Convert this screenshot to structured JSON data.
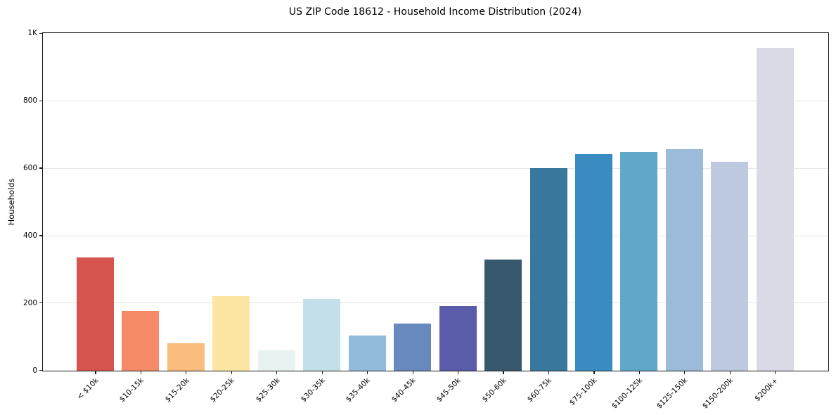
{
  "chart_data": {
    "type": "bar",
    "title": "US ZIP Code 18612 - Household Income Distribution (2024)",
    "xlabel": "",
    "ylabel": "Households",
    "categories": [
      "< $10k",
      "$10-15k",
      "$15-20k",
      "$20-25k",
      "$25-30k",
      "$30-35k",
      "$35-40k",
      "$40-45k",
      "$45-50k",
      "$50-60k",
      "$60-75k",
      "$75-100k",
      "$100-125k",
      "$125-150k",
      "$150-200k",
      "$200k+"
    ],
    "values": [
      337,
      177,
      82,
      222,
      60,
      212,
      105,
      139,
      191,
      330,
      600,
      643,
      650,
      658,
      619,
      958
    ],
    "bar_colors": [
      "#d5544d",
      "#f48a68",
      "#fabd7e",
      "#fde5a4",
      "#e8f3f1",
      "#c3dfe9",
      "#90bcd9",
      "#6889bd",
      "#5a5ca9",
      "#38596d",
      "#38789c",
      "#398bc0",
      "#5fa8c9",
      "#9cbbd8",
      "#bcc9de",
      "#dad9e6"
    ],
    "ylim": [
      0,
      1000
    ],
    "yticks": [
      {
        "value": 0,
        "label": "0"
      },
      {
        "value": 200,
        "label": "200"
      },
      {
        "value": 400,
        "label": "400"
      },
      {
        "value": 600,
        "label": "600"
      },
      {
        "value": 800,
        "label": "800"
      },
      {
        "value": 1000,
        "label": "1K"
      }
    ],
    "grid": {
      "y_values": [
        200,
        400,
        600,
        800
      ],
      "color": "#e6e6e6"
    },
    "legend_position": "none",
    "axis_color": "#1a1a1a",
    "background_color": "#ffffff"
  }
}
